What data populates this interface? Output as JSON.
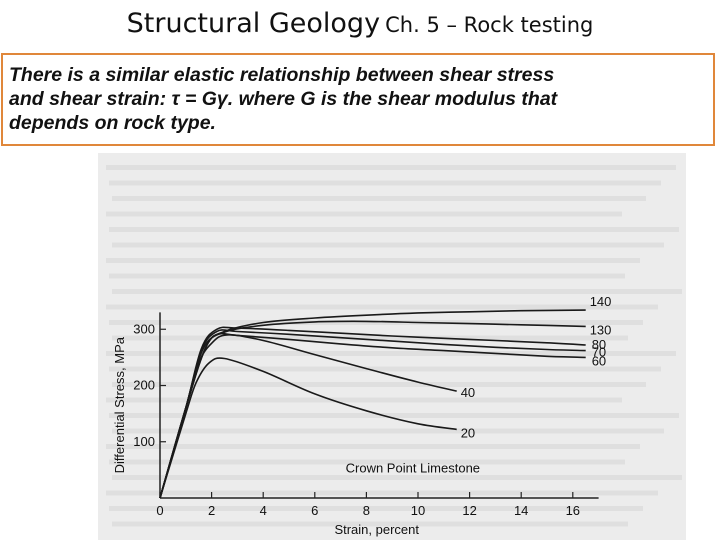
{
  "slide": {
    "title_main": "Structural Geology",
    "title_sub": "Ch. 5 – Rock testing",
    "body_line1": "There is a similar elastic relationship between shear stress",
    "body_line2": "and shear strain: τ = Gγ. where G is the shear modulus that",
    "body_line3": "depends on rock type."
  },
  "chart_data": {
    "type": "line",
    "title": "Crown Point Limestone",
    "xlabel": "Strain, percent",
    "ylabel": "Differential Stress, MPa",
    "xlim": [
      0,
      17
    ],
    "ylim": [
      0,
      330
    ],
    "x_ticks": [
      0,
      2,
      4,
      6,
      8,
      10,
      12,
      14,
      16
    ],
    "y_ticks": [
      100,
      200,
      300
    ],
    "series": [
      {
        "name": "140",
        "x": [
          0,
          1.0,
          1.8,
          2.5,
          4,
          6,
          8,
          10,
          12,
          14,
          16.5
        ],
        "y": [
          0,
          160,
          270,
          296,
          312,
          320,
          325,
          329,
          331,
          333,
          334
        ]
      },
      {
        "name": "130",
        "x": [
          0,
          1.0,
          1.8,
          2.5,
          4,
          6,
          8,
          10,
          12,
          14,
          16.5
        ],
        "y": [
          0,
          160,
          270,
          295,
          307,
          313,
          314,
          312,
          310,
          308,
          305
        ]
      },
      {
        "name": "80",
        "x": [
          0,
          1.0,
          1.6,
          2.2,
          3,
          5,
          7,
          9,
          11,
          13,
          15,
          16.5
        ],
        "y": [
          0,
          160,
          265,
          300,
          302,
          298,
          293,
          288,
          284,
          280,
          276,
          272
        ]
      },
      {
        "name": "70",
        "x": [
          0,
          1.0,
          1.6,
          2.2,
          3,
          5,
          7,
          9,
          11,
          13,
          15,
          16.5
        ],
        "y": [
          0,
          160,
          262,
          296,
          296,
          291,
          285,
          279,
          273,
          268,
          264,
          262
        ]
      },
      {
        "name": "60",
        "x": [
          0,
          1.0,
          1.6,
          2.2,
          3,
          5,
          7,
          9,
          11,
          13,
          15,
          16.5
        ],
        "y": [
          0,
          160,
          258,
          290,
          289,
          282,
          274,
          267,
          262,
          257,
          252,
          250
        ]
      },
      {
        "name": "40",
        "x": [
          0,
          1.0,
          1.5,
          2.0,
          2.6,
          4,
          6,
          8,
          10,
          11.5
        ],
        "y": [
          0,
          160,
          240,
          275,
          290,
          280,
          255,
          230,
          206,
          190
        ]
      },
      {
        "name": "20",
        "x": [
          0,
          1.0,
          1.4,
          1.9,
          2.5,
          4,
          6,
          8,
          10,
          11.5
        ],
        "y": [
          0,
          150,
          205,
          240,
          248,
          225,
          185,
          155,
          132,
          122
        ]
      }
    ]
  }
}
